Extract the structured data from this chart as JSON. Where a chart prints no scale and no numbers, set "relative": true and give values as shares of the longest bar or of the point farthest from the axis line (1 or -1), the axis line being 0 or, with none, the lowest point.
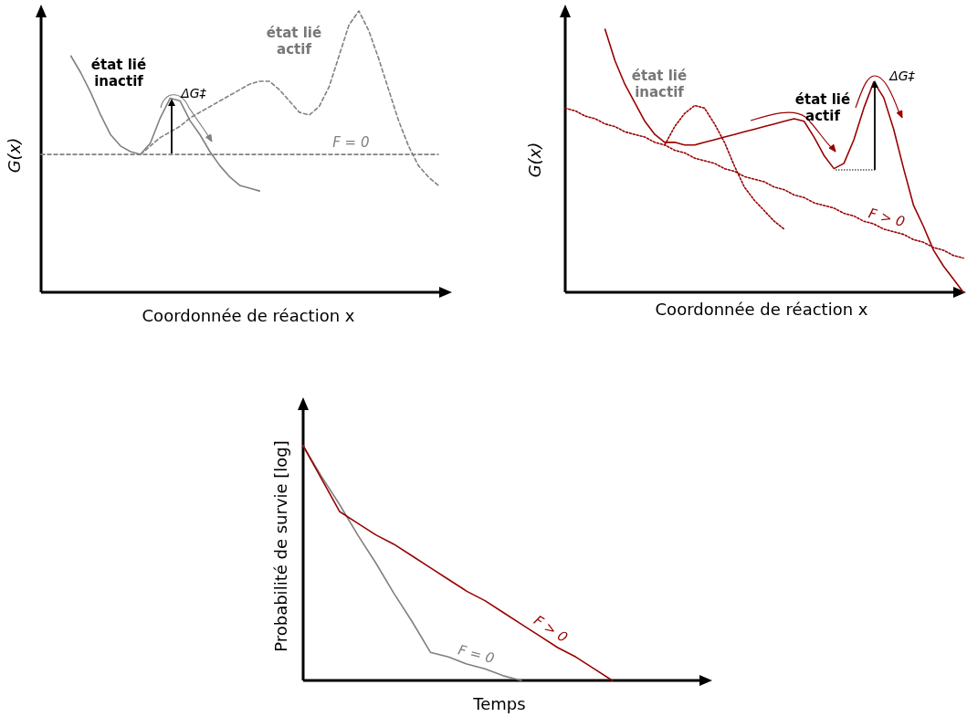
{
  "chart_data": [
    {
      "type": "line",
      "relative": true,
      "xlabel": "Coordonnée de réaction x",
      "ylabel": "G(x)",
      "marker": "none",
      "categories": [
        null,
        null,
        null,
        null,
        null,
        null,
        null,
        null,
        null,
        null,
        null,
        null,
        null,
        null,
        null,
        null,
        null,
        null,
        null,
        null,
        null,
        null,
        null,
        null,
        null,
        null,
        null,
        null,
        null,
        null,
        null,
        null,
        null,
        null,
        null,
        null,
        null,
        null,
        null,
        null,
        null
      ],
      "series": [
        {
          "color": "#808080",
          "line_style": "solid",
          "values": [
            null,
            null,
            null,
            0.84,
            0.78,
            0.71,
            0.63,
            0.56,
            0.52,
            0.5,
            0.49,
            0.53,
            0.62,
            0.69,
            0.68,
            0.61,
            0.56,
            0.5,
            0.45,
            0.41,
            0.38,
            0.37,
            0.36,
            null,
            null,
            null,
            null,
            null,
            null,
            null,
            null,
            null,
            null,
            null,
            null,
            null,
            null,
            null,
            null,
            null,
            null
          ]
        },
        {
          "color": "#808080",
          "line_style": "dashed",
          "values": [
            null,
            null,
            null,
            null,
            null,
            null,
            null,
            null,
            null,
            null,
            0.49,
            0.52,
            0.55,
            0.57,
            0.59,
            0.62,
            0.64,
            0.66,
            0.68,
            0.7,
            0.72,
            0.74,
            0.75,
            0.75,
            0.72,
            0.68,
            0.64,
            0.63,
            0.66,
            0.73,
            0.84,
            0.95,
            1.0,
            0.93,
            0.83,
            0.72,
            0.61,
            0.52,
            0.45,
            0.41,
            0.38
          ]
        },
        {
          "name": "F = 0",
          "color": "#808080",
          "line_style": "dashed",
          "values": [
            0.49,
            0.49,
            0.49,
            0.49,
            0.49,
            0.49,
            0.49,
            0.49,
            0.49,
            0.49,
            0.49,
            0.49,
            0.49,
            0.49,
            0.49,
            0.49,
            0.49,
            0.49,
            0.49,
            0.49,
            0.49,
            0.49,
            0.49,
            0.49,
            0.49,
            0.49,
            0.49,
            0.49,
            0.49,
            0.49,
            0.49,
            0.49,
            0.49,
            0.49,
            0.49,
            0.49,
            0.49,
            0.49,
            0.49,
            0.49,
            0.49
          ]
        }
      ],
      "annotations": [
        "état lié\ninactif",
        "ΔG‡",
        "état lié\nactif"
      ]
    },
    {
      "type": "line",
      "relative": true,
      "xlabel": "Coordonnée de réaction x",
      "ylabel": "G(x)",
      "marker": "none",
      "categories": [
        null,
        null,
        null,
        null,
        null,
        null,
        null,
        null,
        null,
        null,
        null,
        null,
        null,
        null,
        null,
        null,
        null,
        null,
        null,
        null,
        null,
        null,
        null,
        null,
        null,
        null,
        null,
        null,
        null,
        null,
        null,
        null,
        null,
        null,
        null,
        null,
        null,
        null,
        null,
        null,
        null
      ],
      "series": [
        {
          "color": "#990000",
          "line_style": "solid",
          "values": [
            null,
            null,
            null,
            null,
            1.0,
            0.88,
            0.79,
            0.72,
            0.65,
            0.6,
            0.57,
            0.57,
            0.56,
            0.56,
            0.57,
            0.58,
            0.59,
            0.6,
            0.61,
            0.62,
            0.63,
            0.64,
            0.65,
            0.66,
            0.65,
            0.59,
            0.52,
            0.47,
            0.49,
            0.58,
            0.7,
            0.8,
            0.74,
            0.62,
            0.47,
            0.33,
            0.25,
            0.16,
            0.1,
            0.05,
            0
          ]
        },
        {
          "color": "#990000",
          "line_style": "dotted",
          "values": [
            null,
            null,
            null,
            null,
            null,
            null,
            null,
            null,
            null,
            null,
            0.56,
            0.63,
            0.68,
            0.71,
            0.7,
            0.64,
            0.57,
            0.48,
            0.4,
            0.35,
            0.31,
            0.27,
            0.24,
            null,
            null,
            null,
            null,
            null,
            null,
            null,
            null,
            null,
            null,
            null,
            null,
            null,
            null,
            null,
            null,
            null,
            null
          ]
        },
        {
          "name": "F > 0",
          "color": "#990000",
          "line_style": "dotted",
          "values": [
            0.7,
            0.69,
            0.67,
            0.66,
            0.64,
            0.63,
            0.61,
            0.6,
            0.59,
            0.57,
            0.56,
            0.54,
            0.53,
            0.51,
            0.5,
            0.49,
            0.47,
            0.46,
            0.44,
            0.43,
            0.42,
            0.4,
            0.39,
            0.37,
            0.36,
            0.34,
            0.33,
            0.32,
            0.3,
            0.29,
            0.27,
            0.26,
            0.24,
            0.23,
            0.22,
            0.2,
            0.19,
            0.17,
            0.16,
            0.14,
            0.13
          ]
        }
      ],
      "annotations": [
        "état lié\ninactif",
        "état lié\nactif",
        "ΔG‡"
      ]
    },
    {
      "type": "line",
      "relative": true,
      "xlabel": "Temps",
      "ylabel": "Probabilité de survie [log]",
      "marker": "none",
      "categories": [
        null,
        null,
        null,
        null,
        null,
        null,
        null,
        null,
        null,
        null,
        null,
        null,
        null,
        null,
        null,
        null,
        null,
        null,
        null,
        null,
        null,
        null,
        null
      ],
      "series": [
        {
          "name": "F = 0",
          "color": "#808080",
          "line_style": "solid",
          "values": [
            1.0,
            0.87,
            0.75,
            0.62,
            0.5,
            0.37,
            0.25,
            0.12,
            0.1,
            0.07,
            0.05,
            0.02,
            0,
            null,
            null,
            null,
            null,
            null,
            null,
            null,
            null,
            null,
            null
          ]
        },
        {
          "name": "F > 0",
          "color": "#990000",
          "line_style": "solid",
          "values": [
            1.0,
            0.86,
            0.72,
            0.67,
            0.62,
            0.58,
            0.53,
            0.48,
            0.43,
            0.38,
            0.34,
            0.29,
            0.24,
            0.19,
            0.14,
            0.1,
            0.05,
            0,
            null,
            null,
            null,
            null,
            null
          ]
        }
      ]
    }
  ]
}
